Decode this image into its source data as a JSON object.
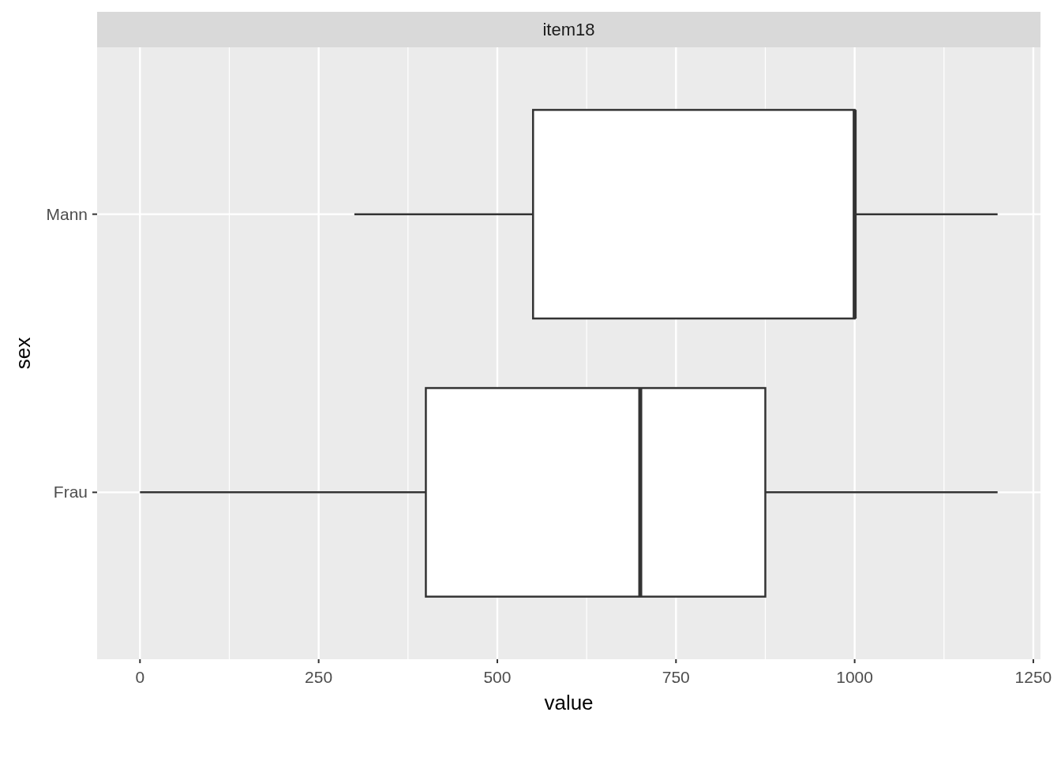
{
  "chart_data": {
    "type": "box",
    "title": "item18",
    "orientation": "horizontal",
    "xlabel": "value",
    "ylabel": "sex",
    "categories": [
      "Mann",
      "Frau"
    ],
    "boxes": [
      {
        "low": 300,
        "q1": 550,
        "median": 1000,
        "q3": 1000,
        "high": 1200
      },
      {
        "low": 0,
        "q1": 400,
        "median": 700,
        "q3": 875,
        "high": 1200
      }
    ],
    "xlim": [
      -60,
      1260
    ],
    "xticks": [
      0,
      250,
      500,
      750,
      1000,
      1250
    ],
    "grid": true
  }
}
